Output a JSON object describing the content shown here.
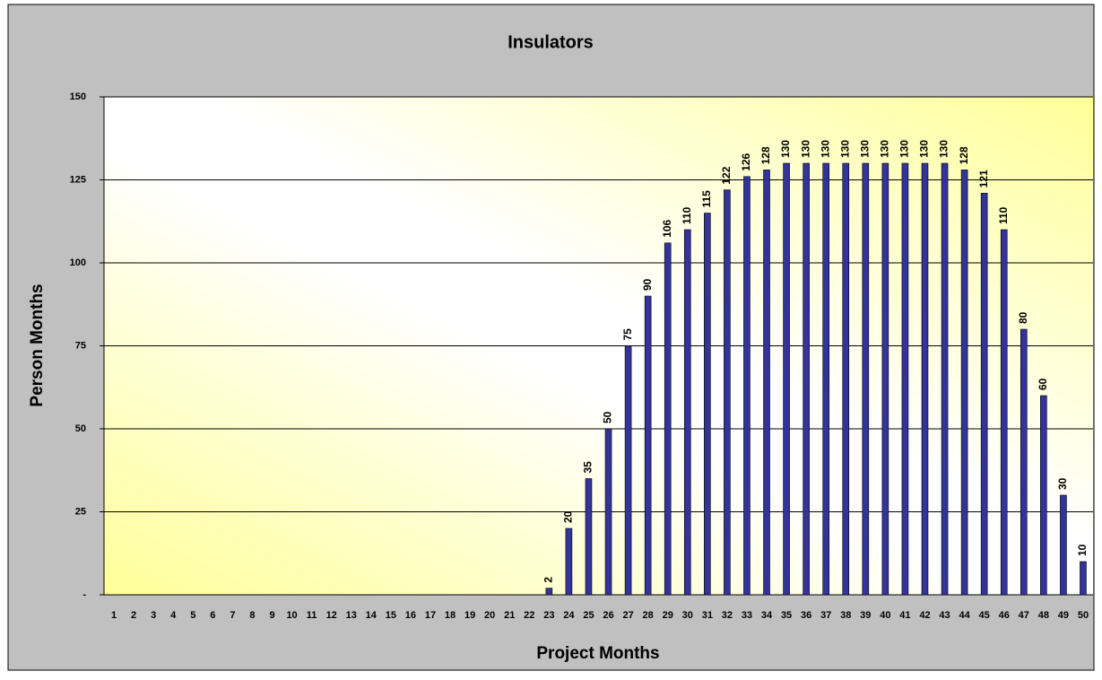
{
  "chart_data": {
    "type": "bar",
    "title": "Insulators",
    "x_label": "Project Months",
    "y_label": "Person Months",
    "categories": [
      1,
      2,
      3,
      4,
      5,
      6,
      7,
      8,
      9,
      10,
      11,
      12,
      13,
      14,
      15,
      16,
      17,
      18,
      19,
      20,
      21,
      22,
      23,
      24,
      25,
      26,
      27,
      28,
      29,
      30,
      31,
      32,
      33,
      34,
      35,
      36,
      37,
      38,
      39,
      40,
      41,
      42,
      43,
      44,
      45,
      46,
      47,
      48,
      49,
      50
    ],
    "values": [
      0,
      0,
      0,
      0,
      0,
      0,
      0,
      0,
      0,
      0,
      0,
      0,
      0,
      0,
      0,
      0,
      0,
      0,
      0,
      0,
      0,
      0,
      2,
      20,
      35,
      50,
      75,
      90,
      106,
      110,
      115,
      122,
      126,
      128,
      130,
      130,
      130,
      130,
      130,
      130,
      130,
      130,
      130,
      128,
      121,
      110,
      80,
      60,
      30,
      10
    ],
    "color": "#333399",
    "ylim": [
      0,
      150
    ],
    "yticks": [
      {
        "value": 0,
        "label": "-"
      },
      25,
      50,
      75,
      100,
      125,
      150
    ],
    "grid": true
  }
}
